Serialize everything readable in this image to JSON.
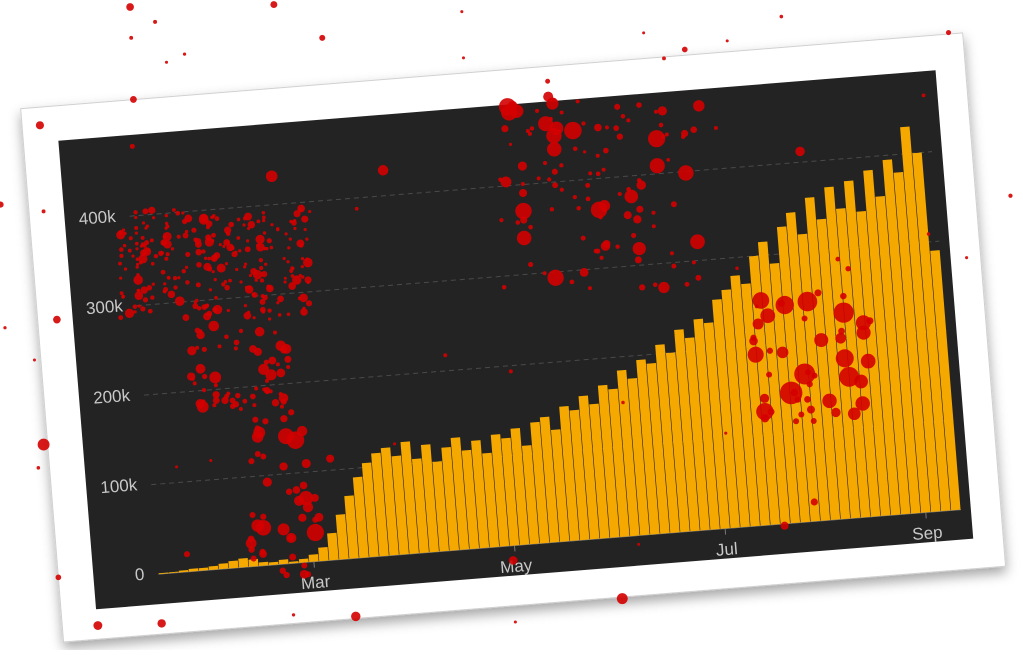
{
  "chart_data": {
    "type": "bar",
    "categories": [
      null,
      null,
      null,
      null,
      null,
      null,
      null,
      null,
      null,
      null,
      null,
      null,
      null,
      null,
      null,
      "Mar",
      null,
      null,
      null,
      null,
      null,
      null,
      null,
      null,
      null,
      null,
      null,
      null,
      null,
      null,
      null,
      null,
      null,
      null,
      null,
      "May",
      null,
      null,
      null,
      null,
      null,
      null,
      null,
      null,
      null,
      null,
      null,
      null,
      null,
      null,
      null,
      null,
      null,
      null,
      null,
      null,
      "Jul",
      null,
      null,
      null,
      null,
      null,
      null,
      null,
      null,
      null,
      null,
      null,
      null,
      null,
      null,
      null,
      null,
      null,
      null,
      null,
      "Sep",
      null,
      null,
      null
    ],
    "values": [
      1,
      1,
      2,
      3,
      3,
      4,
      6,
      8,
      10,
      8,
      4,
      3,
      5,
      2,
      4,
      8,
      15,
      30,
      50,
      70,
      90,
      105,
      115,
      120,
      110,
      125,
      105,
      120,
      100,
      115,
      125,
      110,
      120,
      105,
      125,
      120,
      130,
      110,
      135,
      140,
      125,
      150,
      145,
      160,
      150,
      170,
      165,
      185,
      175,
      195,
      190,
      210,
      200,
      225,
      215,
      235,
      230,
      255,
      265,
      280,
      270,
      300,
      315,
      290,
      330,
      345,
      320,
      360,
      335,
      370,
      345,
      375,
      340,
      385,
      355,
      395,
      380,
      430,
      400,
      290
    ],
    "color": "#f5a800",
    "ylim": [
      0,
      440
    ],
    "yticks": [
      0,
      {
        "value": 100,
        "label": "100k"
      },
      {
        "value": 200,
        "label": "200k"
      },
      {
        "value": 300,
        "label": "300k"
      },
      {
        "value": 400,
        "label": "400k"
      }
    ],
    "grid": true
  }
}
